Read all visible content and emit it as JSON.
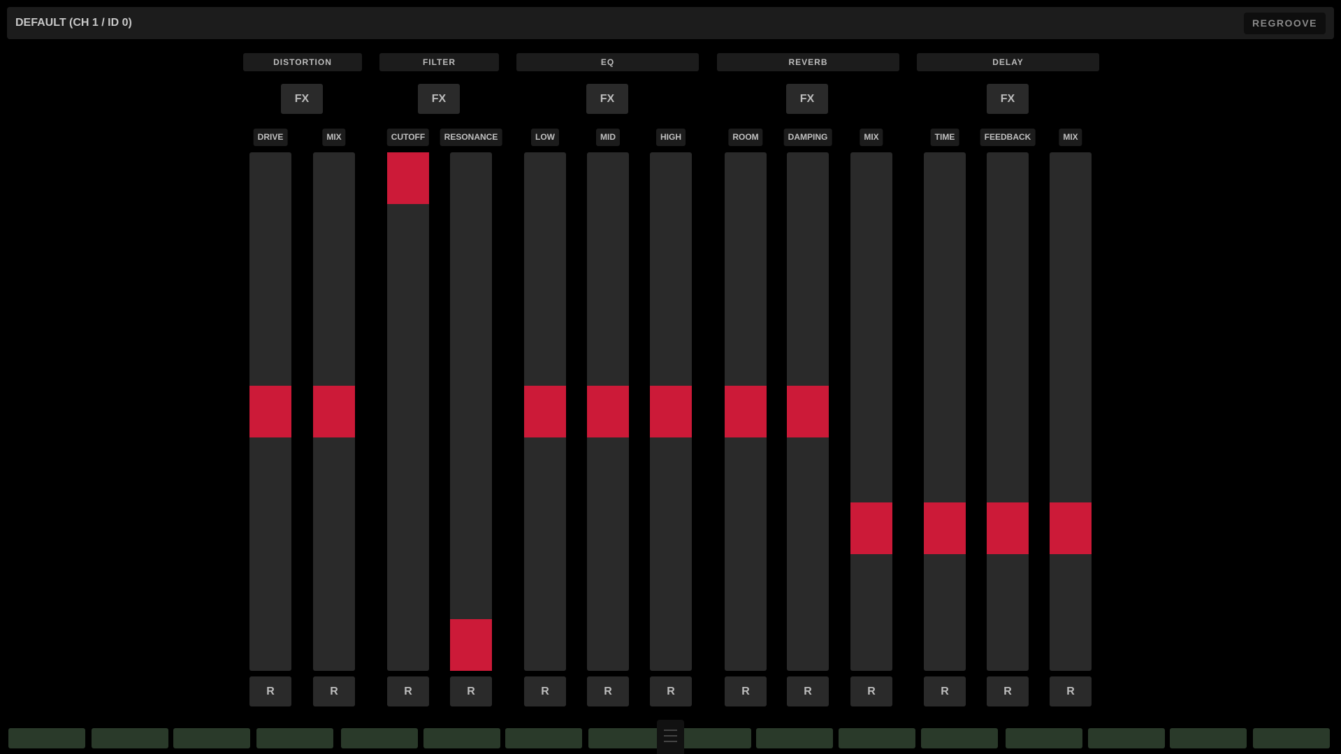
{
  "header": {
    "title": "DEFAULT (CH 1 / ID 0)",
    "button_label": "REGROOVE"
  },
  "colors": {
    "thumb": "#cc1a38",
    "track": "#2a2a2a",
    "pad": "#2a3a2a",
    "background": "#000000"
  },
  "groups": [
    {
      "label": "DISTORTION",
      "fx_label": "FX"
    },
    {
      "label": "FILTER",
      "fx_label": "FX"
    },
    {
      "label": "EQ",
      "fx_label": "FX"
    },
    {
      "label": "REVERB",
      "fx_label": "FX"
    },
    {
      "label": "DELAY",
      "fx_label": "FX"
    }
  ],
  "params": [
    {
      "label": "DRIVE",
      "value": 0.5,
      "reset_label": "R"
    },
    {
      "label": "MIX",
      "value": 0.5,
      "reset_label": "R"
    },
    {
      "label": "CUTOFF",
      "value": 1.0,
      "reset_label": "R"
    },
    {
      "label": "RESONANCE",
      "value": 0.0,
      "reset_label": "R"
    },
    {
      "label": "LOW",
      "value": 0.5,
      "reset_label": "R"
    },
    {
      "label": "MID",
      "value": 0.5,
      "reset_label": "R"
    },
    {
      "label": "HIGH",
      "value": 0.5,
      "reset_label": "R"
    },
    {
      "label": "ROOM",
      "value": 0.5,
      "reset_label": "R"
    },
    {
      "label": "DAMPING",
      "value": 0.5,
      "reset_label": "R"
    },
    {
      "label": "MIX",
      "value": 0.25,
      "reset_label": "R"
    },
    {
      "label": "TIME",
      "value": 0.25,
      "reset_label": "R"
    },
    {
      "label": "FEEDBACK",
      "value": 0.25,
      "reset_label": "R"
    },
    {
      "label": "MIX",
      "value": 0.25,
      "reset_label": "R"
    }
  ],
  "pads_count": 16
}
